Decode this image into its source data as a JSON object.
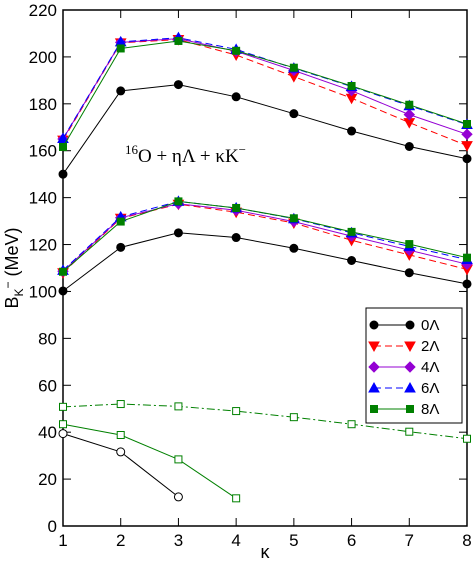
{
  "chart_data": {
    "type": "line",
    "xlabel": "κ",
    "ylabel_main": "B",
    "ylabel_sub": "K",
    "ylabel_sup": "−",
    "ylabel_tail": " (MeV)",
    "xlim": [
      1,
      8
    ],
    "ylim": [
      0,
      220
    ],
    "xticks": [
      1,
      2,
      3,
      4,
      5,
      6,
      7,
      8
    ],
    "yticks": [
      0,
      20,
      40,
      60,
      80,
      100,
      120,
      140,
      160,
      180,
      200,
      220
    ],
    "grid": false,
    "legend_position": "center-right",
    "annotation": {
      "sup": "16",
      "text": "O + ηΛ + κK",
      "sup2": "−"
    },
    "legend": [
      {
        "label": "0Λ",
        "color": "#000000",
        "marker": "circle",
        "dash": "solid"
      },
      {
        "label": "2Λ",
        "color": "#ff0000",
        "marker": "triangle-down",
        "dash": "dashed"
      },
      {
        "label": "4Λ",
        "color": "#9400d3",
        "marker": "diamond",
        "dash": "solid"
      },
      {
        "label": "6Λ",
        "color": "#0000ff",
        "marker": "triangle-up",
        "dash": "dashed"
      },
      {
        "label": "8Λ",
        "color": "#008000",
        "marker": "square",
        "dash": "solid"
      }
    ],
    "series": [
      {
        "group": "upper",
        "color": "#000000",
        "marker": "circle",
        "dash": "solid",
        "x": [
          1,
          2,
          3,
          4,
          5,
          6,
          7,
          8
        ],
        "y": [
          150,
          185.5,
          188.2,
          183,
          175.8,
          168.4,
          161.8,
          156.6
        ]
      },
      {
        "group": "upper",
        "color": "#ff0000",
        "marker": "triangle-down",
        "dash": "dashed",
        "x": [
          1,
          2,
          3,
          4,
          5,
          6,
          7,
          8
        ],
        "y": [
          164.5,
          206,
          207.4,
          200.8,
          191.6,
          182.4,
          172,
          162.2
        ]
      },
      {
        "group": "upper",
        "color": "#9400d3",
        "marker": "diamond",
        "dash": "solid",
        "x": [
          1,
          2,
          3,
          4,
          5,
          6,
          7,
          8
        ],
        "y": [
          165,
          206.2,
          207.8,
          202.4,
          194.2,
          185.6,
          175.4,
          167
        ]
      },
      {
        "group": "upper",
        "color": "#0000ff",
        "marker": "triangle-up",
        "dash": "dashed",
        "x": [
          1,
          2,
          3,
          4,
          5,
          6,
          7,
          8
        ],
        "y": [
          165.2,
          206.4,
          208.2,
          203.2,
          195.2,
          187.4,
          179.2,
          171.2
        ]
      },
      {
        "group": "upper",
        "color": "#008000",
        "marker": "square",
        "dash": "solid",
        "x": [
          1,
          2,
          3,
          4,
          5,
          6,
          7,
          8
        ],
        "y": [
          161.6,
          203.6,
          206.8,
          202.6,
          195.4,
          187.6,
          179.6,
          171.4
        ]
      },
      {
        "group": "middle",
        "color": "#000000",
        "marker": "circle",
        "dash": "solid",
        "x": [
          1,
          2,
          3,
          4,
          5,
          6,
          7,
          8
        ],
        "y": [
          100.2,
          118.8,
          125,
          123,
          118.4,
          113.2,
          108,
          103.2
        ]
      },
      {
        "group": "middle",
        "color": "#ff0000",
        "marker": "triangle-down",
        "dash": "dashed",
        "x": [
          1,
          2,
          3,
          4,
          5,
          6,
          7,
          8
        ],
        "y": [
          108,
          131.2,
          137.2,
          133.8,
          129.2,
          121.8,
          115.6,
          109.4
        ]
      },
      {
        "group": "middle",
        "color": "#9400d3",
        "marker": "diamond",
        "dash": "solid",
        "x": [
          1,
          2,
          3,
          4,
          5,
          6,
          7,
          8
        ],
        "y": [
          108.6,
          131.4,
          137.4,
          134.6,
          129.8,
          123.6,
          117.6,
          111.6
        ]
      },
      {
        "group": "middle",
        "color": "#0000ff",
        "marker": "triangle-up",
        "dash": "dashed",
        "x": [
          1,
          2,
          3,
          4,
          5,
          6,
          7,
          8
        ],
        "y": [
          109,
          131.8,
          138.4,
          135.6,
          131,
          125,
          119.2,
          113.6
        ]
      },
      {
        "group": "middle",
        "color": "#008000",
        "marker": "square",
        "dash": "solid",
        "x": [
          1,
          2,
          3,
          4,
          5,
          6,
          7,
          8
        ],
        "y": [
          108.4,
          129.8,
          138.4,
          135.6,
          131.2,
          125.4,
          120.2,
          114.4
        ]
      },
      {
        "group": "lower",
        "color": "#008000",
        "marker": "square-open",
        "dash": "dashdot",
        "x": [
          1,
          2,
          3,
          4,
          5,
          6,
          7,
          8
        ],
        "y": [
          50.8,
          52,
          51,
          49,
          46.4,
          43.4,
          40.2,
          37.2
        ]
      },
      {
        "group": "lower",
        "color": "#008000",
        "marker": "square-open",
        "dash": "solid",
        "x": [
          1,
          2,
          3,
          4
        ],
        "y": [
          43.4,
          38.8,
          28.4,
          11.8
        ]
      },
      {
        "group": "lower",
        "color": "#000000",
        "marker": "circle-open",
        "dash": "solid",
        "x": [
          1,
          2,
          3
        ],
        "y": [
          39.4,
          31.6,
          12.4
        ]
      }
    ]
  }
}
